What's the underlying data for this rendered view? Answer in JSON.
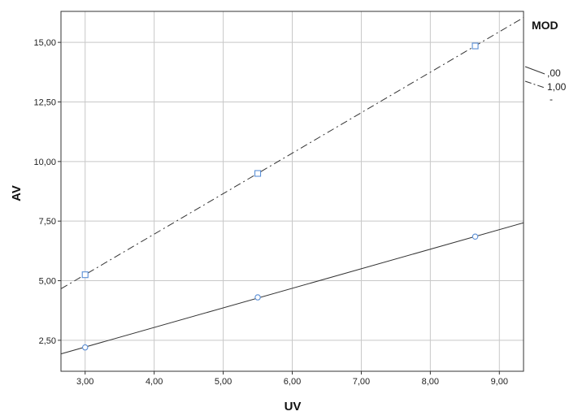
{
  "chart_data": {
    "type": "scatter",
    "xlabel": "UV",
    "ylabel": "AV",
    "xlim": [
      2.65,
      9.35
    ],
    "ylim": [
      1.2,
      16.3
    ],
    "x_ticks": [
      3,
      4,
      5,
      6,
      7,
      8,
      9
    ],
    "x_tick_labels": [
      "3,00",
      "4,00",
      "5,00",
      "6,00",
      "7,00",
      "8,00",
      "9,00"
    ],
    "y_ticks": [
      2.5,
      5,
      7.5,
      10,
      12.5,
      15
    ],
    "y_tick_labels": [
      "2,50",
      "5,00",
      "7,50",
      "10,00",
      "12,50",
      "15,00"
    ],
    "grid": true,
    "legend": {
      "title": "MOD",
      "placement": "right",
      "entries": [
        ",00",
        "1,00",
        "-"
      ]
    },
    "series": [
      {
        "name": ",00",
        "marker": "circle",
        "line_style": "solid",
        "color": "#5b8fd6",
        "line_color": "#333333",
        "x": [
          3.0,
          5.5,
          8.65
        ],
        "y": [
          2.2,
          4.3,
          6.85
        ],
        "fit_line": [
          [
            2.65,
            1.93
          ],
          [
            9.35,
            7.43
          ]
        ]
      },
      {
        "name": "1,00",
        "marker": "square",
        "line_style": "dashdot",
        "color": "#5b8fd6",
        "line_color": "#333333",
        "x": [
          3.0,
          5.5,
          8.65
        ],
        "y": [
          5.25,
          9.5,
          14.85
        ],
        "fit_line": [
          [
            2.65,
            4.66
          ],
          [
            9.35,
            16.04
          ]
        ]
      }
    ]
  }
}
